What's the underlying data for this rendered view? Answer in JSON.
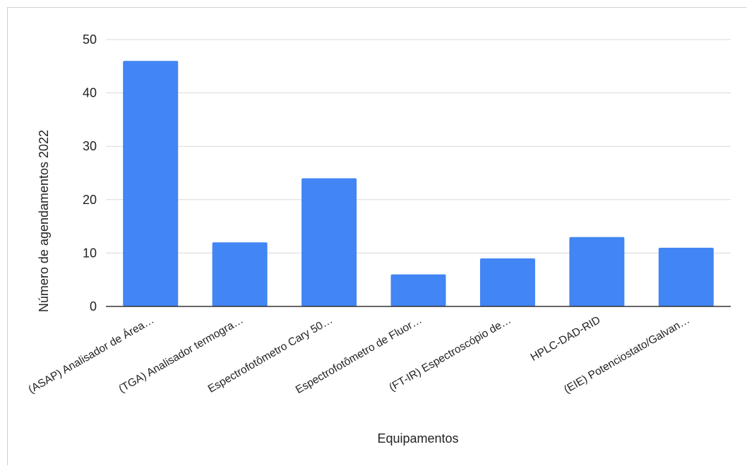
{
  "chart_data": {
    "type": "bar",
    "title": "",
    "xlabel": "Equipamentos",
    "ylabel": "Número de agendamentos 2022",
    "categories": [
      "(ASAP) Analisador de Área…",
      "(TGA) Analisador termogra…",
      "Espectrofotômetro Cary 50…",
      "Espectrofotômetro de Fluor…",
      "(FT-IR) Espectroscópio de…",
      "HPLC-DAD-RID",
      "(EIE) Potenciostato/Galvan…"
    ],
    "values": [
      46,
      12,
      24,
      6,
      9,
      13,
      11
    ],
    "ylim": [
      0,
      50
    ],
    "yticks": [
      0,
      10,
      20,
      30,
      40,
      50
    ],
    "grid": true,
    "legend": "none",
    "colors": {
      "bar": "#4285f4",
      "grid": "#d9d9d9",
      "axis": "#333333"
    }
  }
}
